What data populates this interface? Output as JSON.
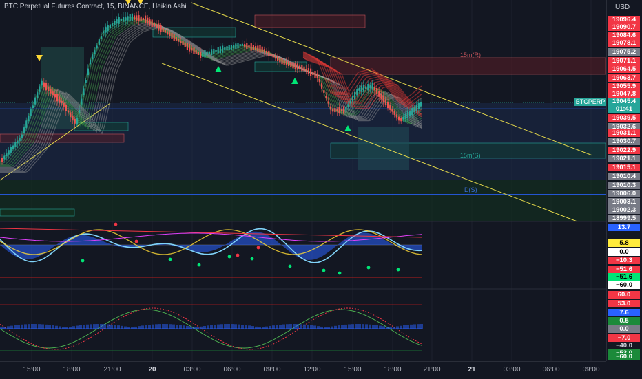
{
  "header": {
    "title": "BTC Perpetual Futures Contract, 15, BINANCE, Heikin Ashi"
  },
  "price_scale": {
    "currency": "USD",
    "symbol_badge": "BTCPERP",
    "countdown": "01:41",
    "labels": [
      {
        "text": "19096.4",
        "bg": "#f23645"
      },
      {
        "text": "19090.7",
        "bg": "#f23645"
      },
      {
        "text": "19084.6",
        "bg": "#f23645"
      },
      {
        "text": "19078.1",
        "bg": "#f23645"
      },
      {
        "text": "19075.2",
        "bg": "#787b86"
      },
      {
        "text": "19071.1",
        "bg": "#f23645"
      },
      {
        "text": "19064.5",
        "bg": "#f23645"
      },
      {
        "text": "19063.7",
        "bg": "#f23645"
      },
      {
        "text": "19055.9",
        "bg": "#f23645"
      },
      {
        "text": "19047.8",
        "bg": "#f23645"
      },
      {
        "text": "19045.4",
        "bg": "#26a69a"
      },
      {
        "text": "01:41",
        "bg": "#26a69a"
      },
      {
        "text": "19039.5",
        "bg": "#f23645"
      },
      {
        "text": "19032.6",
        "bg": "#787b86"
      },
      {
        "text": "19031.1",
        "bg": "#f23645"
      },
      {
        "text": "19030.7",
        "bg": "#787b86"
      },
      {
        "text": "19022.9",
        "bg": "#f23645"
      },
      {
        "text": "19021.1",
        "bg": "#787b86"
      },
      {
        "text": "19015.1",
        "bg": "#f23645"
      },
      {
        "text": "19010.4",
        "bg": "#787b86"
      },
      {
        "text": "19010.3",
        "bg": "#787b86"
      },
      {
        "text": "19006.0",
        "bg": "#787b86"
      },
      {
        "text": "19003.1",
        "bg": "#787b86"
      },
      {
        "text": "19002.3",
        "bg": "#787b86"
      },
      {
        "text": "18999.5",
        "bg": "#787b86"
      }
    ],
    "indicator_labels": [
      {
        "text": "13.7",
        "bg": "#2962ff",
        "fg": "#ffffff"
      },
      {
        "text": "5.8",
        "bg": "#ffeb3b",
        "fg": "#000000"
      },
      {
        "text": "0.0",
        "bg": "#ffffff",
        "fg": "#000000"
      },
      {
        "text": "−10.3",
        "bg": "#f23645",
        "fg": "#ffffff"
      },
      {
        "text": "−51.6",
        "bg": "#f23645",
        "fg": "#ffffff"
      },
      {
        "text": "−51.6",
        "bg": "#00e676",
        "fg": "#000000"
      },
      {
        "text": "−60.0",
        "bg": "#ffffff",
        "fg": "#000000"
      },
      {
        "text": "60.0",
        "bg": "#f23645",
        "fg": "#ffffff"
      },
      {
        "text": "53.0",
        "bg": "#f23645",
        "fg": "#ffffff"
      },
      {
        "text": "7.6",
        "bg": "#2962ff",
        "fg": "#ffffff"
      },
      {
        "text": "0.5",
        "bg": "#1b8a3a",
        "fg": "#ffffff"
      },
      {
        "text": "0.0",
        "bg": "#787b86",
        "fg": "#ffffff"
      },
      {
        "text": "−7.0",
        "bg": "#f23645",
        "fg": "#ffffff"
      },
      {
        "text": "−40.0",
        "bg": "#131722",
        "fg": "#d1d4dc"
      },
      {
        "text": "−53.0",
        "bg": "#1b8a3a",
        "fg": "#ffffff"
      },
      {
        "text": "−60.0",
        "bg": "#1b8a3a",
        "fg": "#ffffff"
      }
    ]
  },
  "annotations": {
    "zone_15m_r": "15m(R)",
    "zone_15m_s": "15m(S)",
    "zone_d_s": "D(S)"
  },
  "time_axis": [
    {
      "text": "15:00",
      "bold": false
    },
    {
      "text": "18:00",
      "bold": false
    },
    {
      "text": "21:00",
      "bold": false
    },
    {
      "text": "20",
      "bold": true
    },
    {
      "text": "03:00",
      "bold": false
    },
    {
      "text": "06:00",
      "bold": false
    },
    {
      "text": "09:00",
      "bold": false
    },
    {
      "text": "12:00",
      "bold": false
    },
    {
      "text": "15:00",
      "bold": false
    },
    {
      "text": "18:00",
      "bold": false
    },
    {
      "text": "21:00",
      "bold": false
    },
    {
      "text": "21",
      "bold": true
    },
    {
      "text": "03:00",
      "bold": false
    },
    {
      "text": "06:00",
      "bold": false
    },
    {
      "text": "09:00",
      "bold": false
    }
  ],
  "colors": {
    "background": "#131722",
    "bull": "#26a69a",
    "bear": "#ef5350",
    "channel": "#e4d84a",
    "grid": "#1e222d"
  }
}
